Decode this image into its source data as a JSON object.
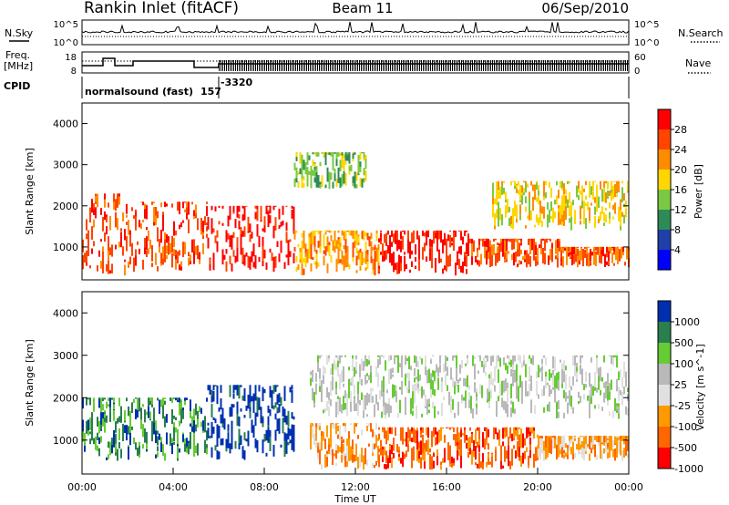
{
  "header": {
    "station": "Rankin Inlet (fitACF)",
    "beam": "Beam 11",
    "date": "06/Sep/2010"
  },
  "top_panels": {
    "nsky_label": "N.Sky",
    "nsearch_label": "N.Search",
    "noise_ticks_left": [
      "10^5",
      "10^0"
    ],
    "noise_ticks_right": [
      "10^5",
      "10^0"
    ],
    "freq_label_1": "Freq.",
    "freq_label_2": "[MHz]",
    "freq_ticks": [
      "18",
      "8"
    ],
    "nave_label": "Nave",
    "nave_ticks": [
      "60",
      "0"
    ],
    "cpid_label": "CPID",
    "mode_name": "normalsound (fast)",
    "cpid_value": "157",
    "cpid_value2": "-3320"
  },
  "colors": {
    "power_scale": [
      "#0000ff",
      "#2040a8",
      "#2e8b57",
      "#7ac943",
      "#ffd700",
      "#ff8c00",
      "#ff4500",
      "#ff0000"
    ],
    "velocity_scale": [
      "#0030b0",
      "#2a7f4f",
      "#66cc33",
      "#b9b9b9",
      "#e0e0e0",
      "#ff9900",
      "#ff6600",
      "#ff0000"
    ]
  },
  "chart_data": [
    {
      "type": "heatmap",
      "name": "power",
      "xlabel": "",
      "ylabel": "Slant Range [km]",
      "xlim": [
        0,
        24
      ],
      "ylim": [
        200,
        4500
      ],
      "ytick_labels": [
        "1000",
        "2000",
        "3000",
        "4000"
      ],
      "colorbar": {
        "label": "Power [dB]",
        "ticks": [
          "4",
          "8",
          "12",
          "16",
          "20",
          "24",
          "28"
        ]
      },
      "regions": [
        {
          "t0": 0.0,
          "t1": 2.0,
          "r0": 300,
          "r1": 2300,
          "level": 6
        },
        {
          "t0": 2.0,
          "t1": 5.5,
          "r0": 400,
          "r1": 2100,
          "level": 6
        },
        {
          "t0": 5.5,
          "t1": 9.3,
          "r0": 400,
          "r1": 2000,
          "level": 7
        },
        {
          "t0": 9.3,
          "t1": 13.0,
          "r0": 300,
          "r1": 1400,
          "level": 5
        },
        {
          "t0": 13.0,
          "t1": 17.0,
          "r0": 300,
          "r1": 1400,
          "level": 7
        },
        {
          "t0": 17.0,
          "t1": 21.0,
          "r0": 500,
          "r1": 1200,
          "level": 6
        },
        {
          "t0": 21.0,
          "t1": 24.0,
          "r0": 500,
          "r1": 1000,
          "level": 6
        },
        {
          "t0": 9.3,
          "t1": 12.5,
          "r0": 2400,
          "r1": 3300,
          "level": 3
        },
        {
          "t0": 18.0,
          "t1": 24.0,
          "r0": 1400,
          "r1": 2600,
          "level": 4
        }
      ]
    },
    {
      "type": "heatmap",
      "name": "velocity",
      "xlabel": "Time UT",
      "ylabel": "Slant Range [km]",
      "xlim": [
        0,
        24
      ],
      "ylim": [
        200,
        4500
      ],
      "xtick_labels": [
        "00:00",
        "04:00",
        "08:00",
        "12:00",
        "16:00",
        "20:00",
        "00:00"
      ],
      "ytick_labels": [
        "1000",
        "2000",
        "3000",
        "4000"
      ],
      "colorbar": {
        "label": "Velocity [m s^-1]",
        "ticks": [
          "1000",
          "500",
          "100",
          "25",
          "-25",
          "-100",
          "-500",
          "-1000"
        ]
      },
      "regions": [
        {
          "t0": 0.0,
          "t1": 5.5,
          "r0": 500,
          "r1": 2000,
          "level": 1
        },
        {
          "t0": 5.5,
          "t1": 9.3,
          "r0": 500,
          "r1": 2300,
          "level": 0
        },
        {
          "t0": 10.0,
          "t1": 13.0,
          "r0": 300,
          "r1": 1400,
          "level": 5
        },
        {
          "t0": 13.0,
          "t1": 20.0,
          "r0": 300,
          "r1": 1300,
          "level": 6
        },
        {
          "t0": 10.0,
          "t1": 24.0,
          "r0": 1500,
          "r1": 3000,
          "level": 3
        },
        {
          "t0": 20.0,
          "t1": 24.0,
          "r0": 500,
          "r1": 1100,
          "level": 5
        }
      ]
    }
  ]
}
